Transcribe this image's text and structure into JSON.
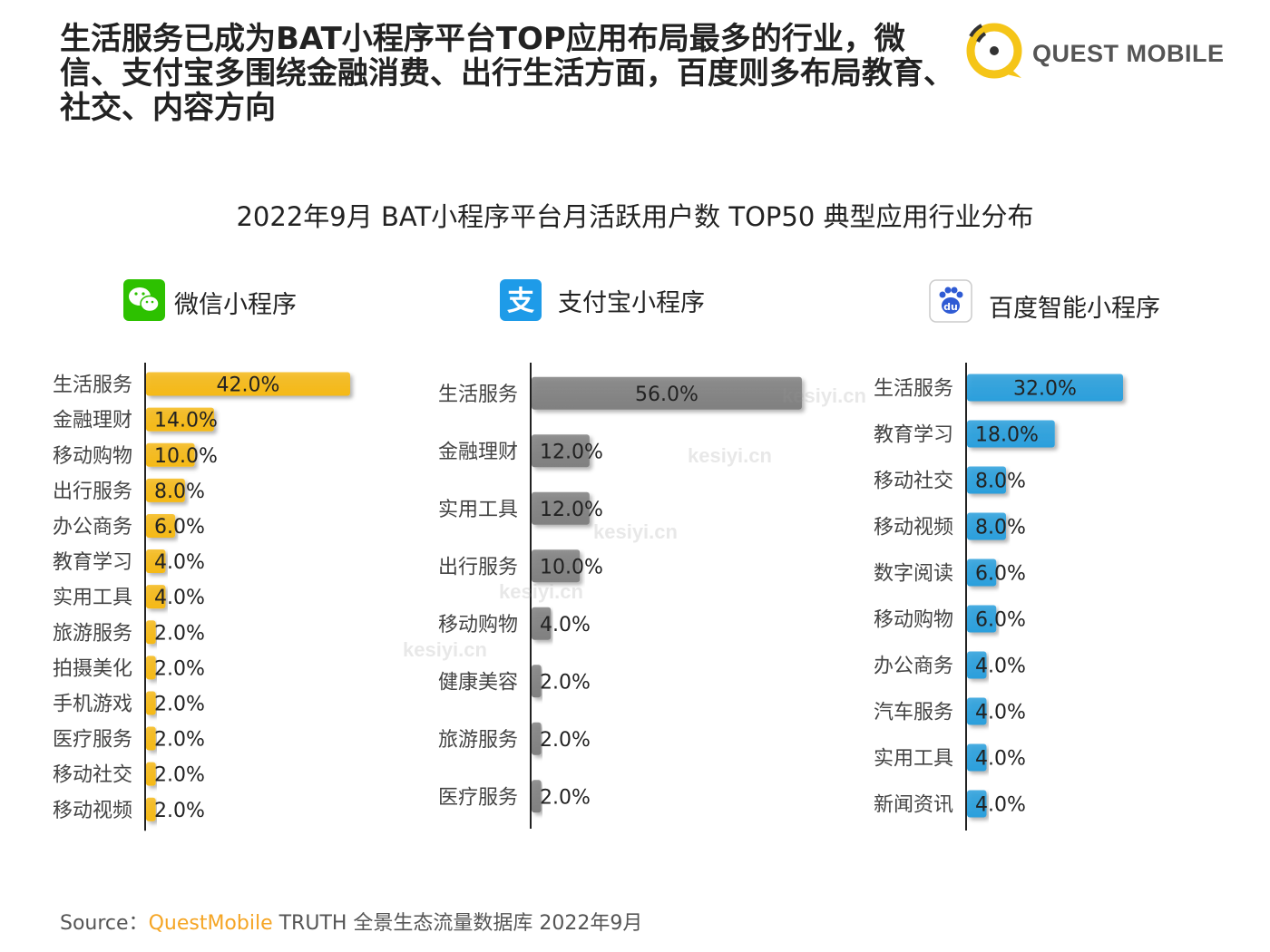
{
  "headline": "生活服务已成为BAT小程序平台TOP应用布局最多的行业，微信、支付宝多围绕金融消费、出行生活方面，百度则多布局教育、社交、内容方向",
  "brand": {
    "name": "QUEST MOBILE",
    "accent": "#f5c518"
  },
  "watermark": "kesiyi.cn",
  "source": {
    "prefix": "Source：",
    "highlight": "QuestMobile",
    "rest": " TRUTH 全景生态流量数据库 2022年9月"
  },
  "chart_data": [
    {
      "type": "bar",
      "orientation": "horizontal",
      "title": "2022年9月 BAT小程序平台月活跃用户数 TOP50 典型应用行业分布",
      "panel_title": "微信小程序",
      "icon": "wechat-icon",
      "color": "#f5b915",
      "categories": [
        "生活服务",
        "金融理财",
        "移动购物",
        "出行服务",
        "办公商务",
        "教育学习",
        "实用工具",
        "旅游服务",
        "拍摄美化",
        "手机游戏",
        "医疗服务",
        "移动社交",
        "移动视频"
      ],
      "values": [
        42.0,
        14.0,
        10.0,
        8.0,
        6.0,
        4.0,
        4.0,
        2.0,
        2.0,
        2.0,
        2.0,
        2.0,
        2.0
      ],
      "value_labels": [
        "42.0%",
        "14.0%",
        "10.0%",
        "8.0%",
        "6.0%",
        "4.0%",
        "4.0%",
        "2.0%",
        "2.0%",
        "2.0%",
        "2.0%",
        "2.0%",
        "2.0%"
      ],
      "unit": "%"
    },
    {
      "type": "bar",
      "orientation": "horizontal",
      "panel_title": "支付宝小程序",
      "icon": "alipay-icon",
      "color": "#808080",
      "categories": [
        "生活服务",
        "金融理财",
        "实用工具",
        "出行服务",
        "移动购物",
        "健康美容",
        "旅游服务",
        "医疗服务"
      ],
      "values": [
        56.0,
        12.0,
        12.0,
        10.0,
        4.0,
        2.0,
        2.0,
        2.0
      ],
      "value_labels": [
        "56.0%",
        "12.0%",
        "12.0%",
        "10.0%",
        "4.0%",
        "2.0%",
        "2.0%",
        "2.0%"
      ],
      "unit": "%"
    },
    {
      "type": "bar",
      "orientation": "horizontal",
      "panel_title": "百度智能小程序",
      "icon": "baidu-icon",
      "color": "#2a9fdc",
      "categories": [
        "生活服务",
        "教育学习",
        "移动社交",
        "移动视频",
        "数字阅读",
        "移动购物",
        "办公商务",
        "汽车服务",
        "实用工具",
        "新闻资讯"
      ],
      "values": [
        32.0,
        18.0,
        8.0,
        8.0,
        6.0,
        6.0,
        4.0,
        4.0,
        4.0,
        4.0
      ],
      "value_labels": [
        "32.0%",
        "18.0%",
        "8.0%",
        "8.0%",
        "6.0%",
        "6.0%",
        "4.0%",
        "4.0%",
        "4.0%",
        "4.0%"
      ],
      "unit": "%"
    }
  ]
}
